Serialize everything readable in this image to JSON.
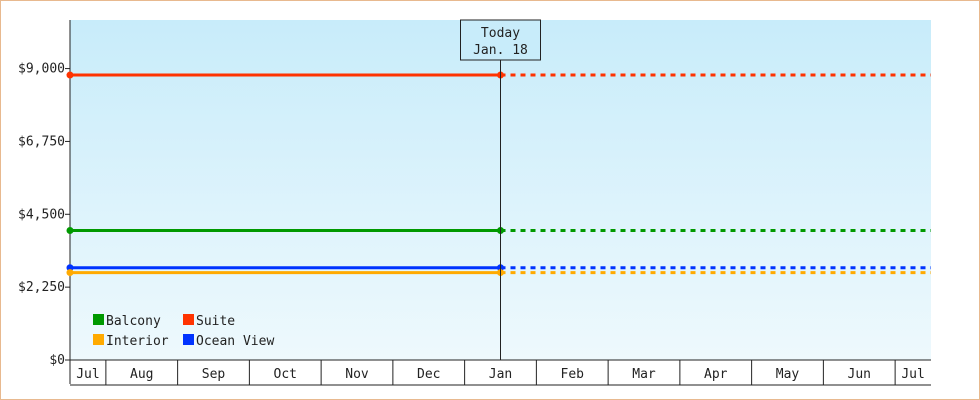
{
  "chart_data": {
    "type": "line",
    "x_categories": [
      "Jul",
      "Aug",
      "Sep",
      "Oct",
      "Nov",
      "Dec",
      "Jan",
      "Feb",
      "Mar",
      "Apr",
      "May",
      "Jun",
      "Jul"
    ],
    "y_ticks": [
      "$0",
      "$2,250",
      "$4,500",
      "$6,750",
      "$9,000"
    ],
    "y_tick_values": [
      0,
      2250,
      4500,
      6750,
      9000
    ],
    "ylim": [
      0,
      10500
    ],
    "today": {
      "label_line1": "Today",
      "label_line2": "Jan. 18",
      "category_index": 6
    },
    "series": [
      {
        "name": "Suite",
        "color": "#ff3300",
        "value": 8800
      },
      {
        "name": "Balcony",
        "color": "#009900",
        "value": 4000
      },
      {
        "name": "Ocean View",
        "color": "#0033ff",
        "value": 2850
      },
      {
        "name": "Interior",
        "color": "#ffaa00",
        "value": 2700
      }
    ],
    "legend": [
      {
        "name": "Balcony",
        "color": "#009900"
      },
      {
        "name": "Suite",
        "color": "#ff3300"
      },
      {
        "name": "Interior",
        "color": "#ffaa00"
      },
      {
        "name": "Ocean View",
        "color": "#0033ff"
      }
    ],
    "legend_placement": "bottom-left",
    "grid": false
  }
}
